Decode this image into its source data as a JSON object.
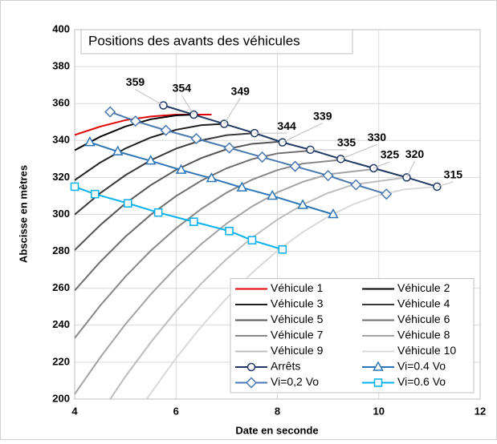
{
  "chart_data": {
    "type": "line",
    "title": "Positions des avants des véhicules",
    "x_label": "Date en seconde",
    "y_label": "Abscisse en mètres",
    "xlim": [
      4,
      12
    ],
    "xticks": [
      4,
      6,
      8,
      10,
      12
    ],
    "ylim": [
      200,
      400
    ],
    "yticks": [
      200,
      220,
      240,
      260,
      280,
      300,
      320,
      340,
      360,
      380,
      400
    ],
    "grid": true,
    "legend": "lower right",
    "series": [
      {
        "name": "Véhicule 1",
        "color": "#e00000",
        "x": [
          4,
          4.5,
          5,
          5.5,
          6,
          6.7
        ],
        "values": [
          343,
          347.5,
          351,
          353,
          354,
          354
        ]
      },
      {
        "name": "Véhicule 2",
        "color": "#000000",
        "x": [
          4,
          4.5,
          5,
          5.5,
          6,
          6.35
        ],
        "values": [
          334.7,
          342,
          347.6,
          351.5,
          353.6,
          354
        ]
      },
      {
        "name": "Véhicule 3",
        "color": "#1e1e1e",
        "x": [
          4,
          4.5,
          5,
          5.5,
          6,
          6.5,
          6.95
        ],
        "values": [
          318.5,
          328,
          335.7,
          341.6,
          345.8,
          348.3,
          349
        ]
      },
      {
        "name": "Véhicule 4",
        "color": "#3a3a3a",
        "x": [
          4,
          4.5,
          5,
          5.5,
          6,
          6.5,
          7,
          7.55
        ],
        "values": [
          299.9,
          311.4,
          321.2,
          329.3,
          335.6,
          340.1,
          342.9,
          344
        ]
      },
      {
        "name": "Véhicule 5",
        "color": "#555555",
        "x": [
          4,
          4.5,
          5,
          5.5,
          6,
          6.5,
          7,
          7.5,
          8.1
        ],
        "values": [
          280.7,
          294.1,
          305.9,
          315.8,
          324.1,
          330.5,
          335.3,
          338.2,
          339.5
        ]
      },
      {
        "name": "Véhicule 6",
        "color": "#6e6e6e",
        "x": [
          4,
          4.5,
          5,
          5.5,
          6,
          6.5,
          7,
          7.5,
          8,
          8.65
        ],
        "values": [
          258.8,
          274.2,
          287.9,
          299.8,
          309.9,
          318.3,
          325,
          329.9,
          333,
          334.5
        ]
      },
      {
        "name": "Véhicule 7",
        "color": "#888888",
        "x": [
          4,
          4.5,
          5,
          5.5,
          6,
          6.5,
          7,
          7.5,
          8,
          8.5,
          9.25
        ],
        "values": [
          233,
          250.5,
          266.3,
          280.3,
          292.5,
          303,
          311.8,
          318.8,
          324,
          327.5,
          329.5
        ]
      },
      {
        "name": "Véhicule 8",
        "color": "#a3a3a3",
        "x": [
          4,
          4.5,
          5,
          5.5,
          6,
          6.5,
          7,
          7.5,
          8,
          8.5,
          9,
          9.9
        ],
        "values": [
          202.7,
          222.4,
          240.5,
          256.7,
          271.3,
          284,
          295.1,
          304.3,
          311.9,
          317.6,
          321.7,
          324.5
        ]
      },
      {
        "name": "Véhicule 9",
        "color": "#bdbdbd",
        "x": [
          4.7,
          5,
          5.5,
          6,
          6.5,
          7,
          7.5,
          8,
          8.5,
          9,
          9.5,
          10.55
        ],
        "values": [
          200,
          212.2,
          230.7,
          247.6,
          262.6,
          275.9,
          287.4,
          297.2,
          305.3,
          311.6,
          316.1,
          320
        ]
      },
      {
        "name": "Véhicule 10",
        "color": "#d9d9d9",
        "x": [
          5.42,
          6,
          6.5,
          7,
          7.5,
          8,
          8.5,
          9,
          9.5,
          10,
          10.5,
          11.15
        ],
        "values": [
          200,
          222.2,
          239.3,
          254.7,
          268.4,
          280.3,
          290.4,
          298.8,
          305.5,
          310.4,
          313.5,
          315
        ]
      },
      {
        "name": "Arrêts",
        "color": "#1f3864",
        "marker": "circle",
        "x": [
          5.75,
          6.35,
          6.95,
          7.55,
          8.1,
          8.65,
          9.25,
          9.9,
          10.55,
          11.15
        ],
        "values": [
          359,
          354,
          349,
          344,
          339,
          335,
          330,
          325,
          320,
          315
        ]
      },
      {
        "name": "Vi=0.4 Vo",
        "color": "#2e75b6",
        "marker": "triangle",
        "x": [
          4.3,
          4.85,
          5.5,
          6.1,
          6.7,
          7.3,
          7.9,
          8.5,
          9.1
        ],
        "values": [
          339,
          334,
          329,
          324,
          319.5,
          314.5,
          310,
          305,
          300
        ]
      },
      {
        "name": "Vi=0,2 Vo",
        "color": "#4a78b0",
        "marker": "diamond",
        "x": [
          4.7,
          5.2,
          5.8,
          6.4,
          7.05,
          7.7,
          8.35,
          9,
          9.55,
          10.15
        ],
        "values": [
          355.5,
          350.5,
          345.5,
          341,
          336,
          331,
          326,
          321,
          316,
          311
        ]
      },
      {
        "name": "Vi=0.6 Vo",
        "color": "#00b0f0",
        "marker": "square",
        "x": [
          4,
          4.4,
          5.05,
          5.65,
          6.35,
          7.05,
          7.5,
          8.1
        ],
        "values": [
          315,
          311,
          306,
          301,
          296,
          291,
          286,
          281
        ]
      }
    ]
  }
}
